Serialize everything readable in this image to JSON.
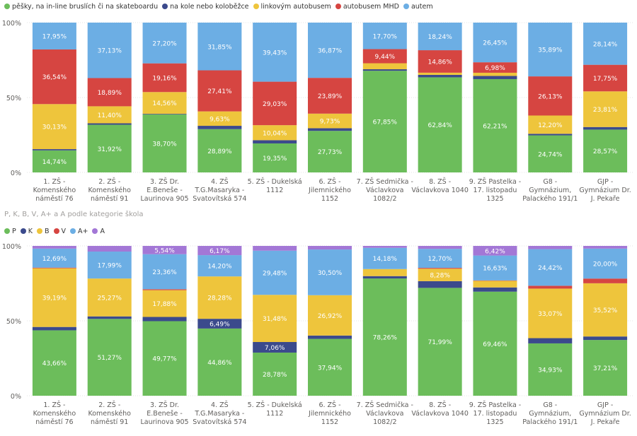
{
  "colors": {
    "green": "#6cbd5b",
    "navy": "#3b4a8c",
    "yellow": "#eec53c",
    "red": "#d64541",
    "blue": "#6caee4",
    "purple": "#a377d6"
  },
  "chart_data": [
    {
      "type": "bar",
      "stacked": true,
      "title": "",
      "legend_position": "top-left",
      "categories": [
        "1. ZŠ - Komenského náměstí 76",
        "2. ZŠ - Komenského náměstí 91",
        "3. ZŠ Dr. E.Beneše - Laurinova 905",
        "4. ZŠ T.G.Masaryka - Svatovítská 574",
        "5. ZŠ - Dukelská 1112",
        "6. ZŠ - Jilemnického 1152",
        "7. ZŠ Sedmička - Václavkova 1082/2",
        "8. ZŠ - Václavkova 1040",
        "9. ZŠ Pastelka - 17. listopadu 1325",
        "G8 - Gymnázium, Palackého 191/1",
        "GJP - Gymnázium Dr. J. Pekaře"
      ],
      "category_lines": [
        [
          "1. ZŠ -",
          "Komenského",
          "náměstí 76"
        ],
        [
          "2. ZŠ -",
          "Komenského",
          "náměstí 91"
        ],
        [
          "3. ZŠ Dr.",
          "E.Beneše -",
          "Laurinova 905"
        ],
        [
          "4. ZŠ",
          "T.G.Masaryka -",
          "Svatovítská 574"
        ],
        [
          "5. ZŠ - Dukelská",
          "1112"
        ],
        [
          "6. ZŠ -",
          "Jilemnického",
          "1152"
        ],
        [
          "7. ZŠ Sedmička -",
          "Václavkova",
          "1082/2"
        ],
        [
          "8. ZŠ -",
          "Václavkova 1040"
        ],
        [
          "9. ZŠ Pastelka -",
          "17. listopadu",
          "1325"
        ],
        [
          "G8 -",
          "Gymnázium,",
          "Palackého 191/1"
        ],
        [
          "GJP -",
          "Gymnázium Dr.",
          "J. Pekaře"
        ]
      ],
      "y_ticks": [
        "0%",
        "50%",
        "100%"
      ],
      "ylim": [
        0,
        100
      ],
      "series": [
        {
          "name": "pěšky, na in-line bruslích či na skateboardu",
          "color": "#6cbd5b",
          "values": [
            14.74,
            31.92,
            38.7,
            28.89,
            19.35,
            27.73,
            67.85,
            62.84,
            62.21,
            24.74,
            28.57
          ],
          "labels": [
            "14,74%",
            "31,92%",
            "38,70%",
            "28,89%",
            "19,35%",
            "27,73%",
            "67,85%",
            "62,84%",
            "62,21%",
            "24,74%",
            "28,57%"
          ]
        },
        {
          "name": "na kole nebo koloběžce",
          "color": "#3b4a8c",
          "values": [
            0.84,
            0.96,
            0.4,
            2.22,
            2.15,
            1.78,
            1.01,
            1.62,
            2.1,
            1.04,
            1.73
          ],
          "labels": [
            "",
            "",
            "",
            "",
            "",
            "",
            "",
            "",
            "",
            "",
            ""
          ]
        },
        {
          "name": "linkovým autobusem",
          "color": "#eec53c",
          "values": [
            30.13,
            11.4,
            14.56,
            9.63,
            10.04,
            9.73,
            4.0,
            1.44,
            2.15,
            12.2,
            23.81
          ],
          "labels": [
            "30,13%",
            "11,40%",
            "14,56%",
            "9,63%",
            "10,04%",
            "9,73%",
            "",
            "",
            "",
            "12,20%",
            "23,81%"
          ]
        },
        {
          "name": "autobusem MHD",
          "color": "#d64541",
          "values": [
            36.54,
            18.89,
            19.16,
            27.41,
            29.03,
            23.89,
            9.44,
            14.86,
            6.98,
            26.13,
            17.75
          ],
          "labels": [
            "36,54%",
            "18,89%",
            "19,16%",
            "27,41%",
            "29,03%",
            "23,89%",
            "9,44%",
            "14,86%",
            "6,98%",
            "26,13%",
            "17,75%"
          ]
        },
        {
          "name": "autem",
          "color": "#6caee4",
          "values": [
            17.95,
            37.13,
            27.2,
            31.85,
            39.43,
            36.87,
            17.7,
            18.24,
            26.45,
            35.89,
            28.14
          ],
          "labels": [
            "17,95%",
            "37,13%",
            "27,20%",
            "31,85%",
            "39,43%",
            "36,87%",
            "17,70%",
            "18,24%",
            "26,45%",
            "35,89%",
            "28,14%"
          ]
        }
      ]
    },
    {
      "type": "bar",
      "stacked": true,
      "title": "P, K, B, V, A+ a A podle kategorie škola",
      "legend_position": "top-left",
      "categories": [
        "1. ZŠ - Komenského náměstí 76",
        "2. ZŠ - Komenského náměstí 91",
        "3. ZŠ Dr. E.Beneše - Laurinova 905",
        "4. ZŠ T.G.Masaryka - Svatovítská 574",
        "5. ZŠ - Dukelská 1112",
        "6. ZŠ - Jilemnického 1152",
        "7. ZŠ Sedmička - Václavkova 1082/2",
        "8. ZŠ - Václavkova 1040",
        "9. ZŠ Pastelka - 17. listopadu 1325",
        "G8 - Gymnázium, Palackého 191/1",
        "GJP - Gymnázium Dr. J. Pekaře"
      ],
      "category_lines": [
        [
          "1. ZŠ -",
          "Komenského",
          "náměstí 76"
        ],
        [
          "2. ZŠ -",
          "Komenského",
          "náměstí 91"
        ],
        [
          "3. ZŠ Dr.",
          "E.Beneše -",
          "Laurinova 905"
        ],
        [
          "4. ZŠ",
          "T.G.Masaryka -",
          "Svatovítská 574"
        ],
        [
          "5. ZŠ - Dukelská",
          "1112"
        ],
        [
          "6. ZŠ -",
          "Jilemnického",
          "1152"
        ],
        [
          "7. ZŠ Sedmička -",
          "Václavkova",
          "1082/2"
        ],
        [
          "8. ZŠ -",
          "Václavkova 1040"
        ],
        [
          "9. ZŠ Pastelka -",
          "17. listopadu",
          "1325"
        ],
        [
          "G8 -",
          "Gymnázium,",
          "Palackého 191/1"
        ],
        [
          "GJP -",
          "Gymnázium Dr.",
          "J. Pekaře"
        ]
      ],
      "y_ticks": [
        "0%",
        "50%",
        "100%"
      ],
      "ylim": [
        0,
        100
      ],
      "series": [
        {
          "name": "P",
          "color": "#6cbd5b",
          "values": [
            43.66,
            51.27,
            49.77,
            44.86,
            28.78,
            37.94,
            78.26,
            71.99,
            69.46,
            34.93,
            37.21
          ],
          "labels": [
            "43,66%",
            "51,27%",
            "49,77%",
            "44,86%",
            "28,78%",
            "37,94%",
            "78,26%",
            "71,99%",
            "69,46%",
            "34,93%",
            "37,21%"
          ]
        },
        {
          "name": "K",
          "color": "#3b4a8c",
          "values": [
            2.24,
            1.69,
            2.82,
            6.49,
            7.06,
            2.24,
            1.58,
            4.5,
            2.83,
            3.5,
            2.33
          ],
          "labels": [
            "",
            "",
            "",
            "6,49%",
            "7,06%",
            "",
            "",
            "",
            "",
            "",
            ""
          ]
        },
        {
          "name": "B",
          "color": "#eec53c",
          "values": [
            39.19,
            25.27,
            17.88,
            28.28,
            31.48,
            26.92,
            4.7,
            8.28,
            4.4,
            33.07,
            35.52
          ],
          "labels": [
            "39,19%",
            "25,27%",
            "17,88%",
            "28,28%",
            "31,48%",
            "26,92%",
            "",
            "8,28%",
            "",
            "33,07%",
            "35,52%"
          ]
        },
        {
          "name": "V",
          "color": "#d64541",
          "values": [
            0.42,
            0.0,
            0.63,
            0.0,
            0.0,
            0.0,
            0.0,
            0.56,
            0.26,
            1.91,
            3.14
          ],
          "labels": [
            "",
            "",
            "",
            "",
            "",
            "",
            "",
            "",
            "",
            "",
            ""
          ]
        },
        {
          "name": "A+",
          "color": "#6caee4",
          "values": [
            12.69,
            17.99,
            23.36,
            14.2,
            29.48,
            30.5,
            14.18,
            12.7,
            16.63,
            24.42,
            20.0
          ],
          "labels": [
            "12,69%",
            "17,99%",
            "23,36%",
            "14,20%",
            "29,48%",
            "30,50%",
            "14,18%",
            "12,70%",
            "16,63%",
            "24,42%",
            "20,00%"
          ]
        },
        {
          "name": "A",
          "color": "#a377d6",
          "values": [
            1.8,
            3.78,
            5.54,
            6.17,
            3.18,
            2.4,
            1.28,
            1.97,
            6.42,
            2.17,
            1.8
          ],
          "labels": [
            "",
            "",
            "5,54%",
            "6,17%",
            "",
            "",
            "",
            "",
            "6,42%",
            "",
            ""
          ]
        }
      ]
    }
  ]
}
